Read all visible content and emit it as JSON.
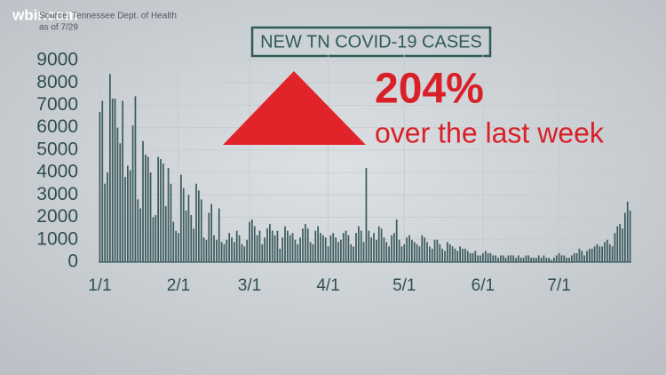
{
  "chart_data": {
    "type": "bar",
    "logo": "wbir.com",
    "source": "Source: Tennessee Dept. of Health",
    "as_of": "as of 7/29",
    "title": "NEW TN COVID-19 CASES",
    "change": "204%",
    "change_note": "over the last week",
    "color": "#3c5b5f",
    "grid": true,
    "ylim": [
      0,
      9000
    ],
    "yticks": [
      0,
      1000,
      2000,
      3000,
      4000,
      5000,
      6000,
      7000,
      8000,
      9000
    ],
    "categories": [
      "1/1",
      null,
      null,
      null,
      null,
      null,
      null,
      null,
      null,
      null,
      null,
      null,
      null,
      null,
      null,
      null,
      null,
      null,
      null,
      null,
      null,
      null,
      null,
      null,
      null,
      null,
      null,
      null,
      null,
      null,
      null,
      "2/1",
      null,
      null,
      null,
      null,
      null,
      null,
      null,
      null,
      null,
      null,
      null,
      null,
      null,
      null,
      null,
      null,
      null,
      null,
      null,
      null,
      null,
      null,
      null,
      null,
      null,
      null,
      null,
      "3/1",
      null,
      null,
      null,
      null,
      null,
      null,
      null,
      null,
      null,
      null,
      null,
      null,
      null,
      null,
      null,
      null,
      null,
      null,
      null,
      null,
      null,
      null,
      null,
      null,
      null,
      null,
      null,
      null,
      null,
      null,
      "4/1",
      null,
      null,
      null,
      null,
      null,
      null,
      null,
      null,
      null,
      null,
      null,
      null,
      null,
      null,
      null,
      null,
      null,
      null,
      null,
      null,
      null,
      null,
      null,
      null,
      null,
      null,
      null,
      null,
      null,
      "5/1",
      null,
      null,
      null,
      null,
      null,
      null,
      null,
      null,
      null,
      null,
      null,
      null,
      null,
      null,
      null,
      null,
      null,
      null,
      null,
      null,
      null,
      null,
      null,
      null,
      null,
      null,
      null,
      null,
      null,
      null,
      "6/1",
      null,
      null,
      null,
      null,
      null,
      null,
      null,
      null,
      null,
      null,
      null,
      null,
      null,
      null,
      null,
      null,
      null,
      null,
      null,
      null,
      null,
      null,
      null,
      null,
      null,
      null,
      null,
      null,
      null,
      "7/1",
      null,
      null,
      null,
      null,
      null,
      null,
      null,
      null,
      null,
      null,
      null,
      null,
      null,
      null,
      null,
      null,
      null,
      null,
      null,
      null,
      null,
      null,
      null,
      null,
      null,
      null,
      null,
      null
    ],
    "values": [
      6700,
      7200,
      3500,
      4000,
      8400,
      7300,
      7300,
      6000,
      5300,
      7200,
      3800,
      4300,
      4100,
      6100,
      7400,
      2800,
      2400,
      5400,
      4800,
      4700,
      4000,
      2000,
      2100,
      4700,
      4600,
      4400,
      2500,
      4200,
      3500,
      1800,
      1400,
      1300,
      3900,
      3300,
      2300,
      3000,
      2100,
      1500,
      3500,
      3200,
      2800,
      1100,
      1000,
      2200,
      2600,
      1200,
      1000,
      2400,
      900,
      800,
      1000,
      1300,
      1100,
      900,
      1400,
      1200,
      800,
      700,
      1000,
      1800,
      1900,
      1600,
      1200,
      1400,
      800,
      1100,
      1500,
      1700,
      1400,
      1200,
      1400,
      600,
      1100,
      1600,
      1400,
      1200,
      1300,
      1000,
      800,
      1100,
      1500,
      1700,
      1500,
      900,
      800,
      1400,
      1600,
      1300,
      1200,
      1100,
      700,
      1200,
      1300,
      1100,
      900,
      1000,
      1300,
      1400,
      1200,
      800,
      700,
      1300,
      1600,
      1400,
      900,
      4200,
      1400,
      1100,
      1300,
      1000,
      1600,
      1500,
      1100,
      900,
      700,
      1200,
      1300,
      1900,
      1000,
      700,
      800,
      1100,
      1200,
      1000,
      900,
      800,
      700,
      1200,
      1100,
      900,
      700,
      600,
      1000,
      1000,
      800,
      600,
      500,
      900,
      800,
      700,
      600,
      500,
      700,
      600,
      600,
      500,
      400,
      400,
      500,
      300,
      300,
      400,
      500,
      400,
      400,
      300,
      300,
      200,
      300,
      300,
      200,
      300,
      300,
      300,
      200,
      300,
      200,
      200,
      300,
      300,
      200,
      200,
      200,
      300,
      200,
      300,
      200,
      200,
      100,
      200,
      300,
      400,
      300,
      300,
      200,
      200,
      300,
      400,
      400,
      600,
      500,
      300,
      500,
      600,
      600,
      700,
      800,
      700,
      700,
      900,
      1000,
      800,
      700,
      1300,
      1600,
      1700,
      1500,
      2200,
      2700,
      2300
    ]
  }
}
